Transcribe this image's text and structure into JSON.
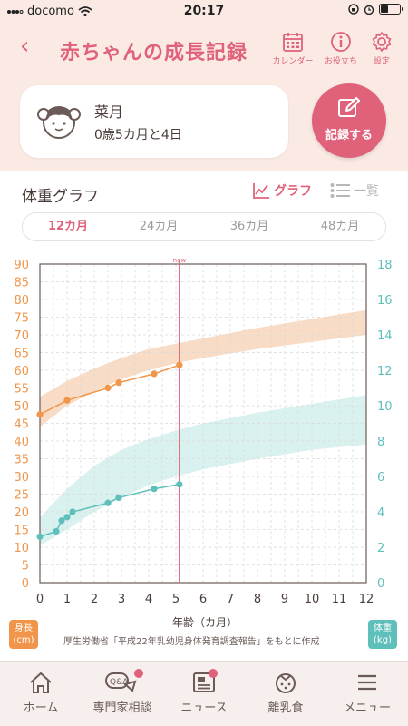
{
  "status": {
    "carrier": "docomo",
    "time": "20:17"
  },
  "header": {
    "back_icon": "chevron-left-icon",
    "title": "赤ちゃんの成長記録",
    "buttons": [
      {
        "icon": "calendar-icon",
        "label": "カレンダー"
      },
      {
        "icon": "info-icon",
        "label": "お役立ち"
      },
      {
        "icon": "gear-icon",
        "label": "設定"
      }
    ]
  },
  "profile": {
    "name": "菜月",
    "age": "0歳5カ月と4日"
  },
  "record_button": {
    "label": "記録する"
  },
  "graph_section": {
    "title": "体重グラフ",
    "view_graph": "グラフ",
    "view_list": "一覧",
    "tabs": [
      "12カ月",
      "24カ月",
      "36カ月",
      "48カ月"
    ],
    "active_tab": 0
  },
  "chart_data": {
    "type": "line",
    "xlabel": "年齢（カ月）",
    "xlim": [
      0,
      12
    ],
    "x_ticks": [
      0,
      1,
      2,
      3,
      4,
      5,
      6,
      7,
      8,
      9,
      10,
      11,
      12
    ],
    "left_axis": {
      "ylim": [
        0,
        90
      ],
      "ticks": [
        0,
        5,
        10,
        15,
        20,
        25,
        30,
        35,
        40,
        45,
        50,
        55,
        60,
        65,
        70,
        75,
        80,
        85,
        90
      ]
    },
    "right_axis": {
      "ylim": [
        0,
        18
      ],
      "ticks": [
        0,
        2,
        4,
        6,
        8,
        10,
        12,
        14,
        16,
        18
      ]
    },
    "now_marker": {
      "label": "now",
      "x": 5.13
    },
    "series": [
      {
        "axis": "left",
        "color": "#f0954a",
        "points": [
          [
            0,
            47.5
          ],
          [
            1,
            51.5
          ],
          [
            2.5,
            55
          ],
          [
            2.9,
            56.5
          ],
          [
            4.2,
            59
          ],
          [
            5.13,
            61.5
          ]
        ]
      },
      {
        "axis": "right",
        "color": "#5fbfbb",
        "points": [
          [
            0,
            2.6
          ],
          [
            0.6,
            2.9
          ],
          [
            0.8,
            3.5
          ],
          [
            1,
            3.7
          ],
          [
            1.2,
            4.0
          ],
          [
            2.5,
            4.5
          ],
          [
            2.9,
            4.8
          ],
          [
            4.2,
            5.3
          ],
          [
            5.13,
            5.55
          ]
        ]
      }
    ],
    "bands": [
      {
        "axis": "left",
        "color": "#f7d0b2",
        "lower": [
          [
            0,
            44
          ],
          [
            1,
            50
          ],
          [
            2,
            54
          ],
          [
            3,
            57.5
          ],
          [
            4,
            60
          ],
          [
            5,
            62
          ],
          [
            6,
            63.5
          ],
          [
            8,
            66
          ],
          [
            10,
            68
          ],
          [
            12,
            70
          ]
        ],
        "upper": [
          [
            0,
            52.5
          ],
          [
            1,
            57
          ],
          [
            2,
            60.5
          ],
          [
            3,
            63.5
          ],
          [
            4,
            66
          ],
          [
            5,
            67.5
          ],
          [
            6,
            69
          ],
          [
            8,
            72
          ],
          [
            10,
            74.5
          ],
          [
            12,
            77
          ]
        ]
      },
      {
        "axis": "right",
        "color": "#cdeee9",
        "lower": [
          [
            0,
            2.1
          ],
          [
            1,
            3.0
          ],
          [
            2,
            4.0
          ],
          [
            3,
            4.8
          ],
          [
            4,
            5.5
          ],
          [
            5,
            6.0
          ],
          [
            6,
            6.4
          ],
          [
            8,
            7.0
          ],
          [
            10,
            7.5
          ],
          [
            12,
            7.8
          ]
        ],
        "upper": [
          [
            0,
            3.7
          ],
          [
            1,
            5.3
          ],
          [
            2,
            6.6
          ],
          [
            3,
            7.5
          ],
          [
            4,
            8.1
          ],
          [
            5,
            8.6
          ],
          [
            6,
            9.0
          ],
          [
            8,
            9.6
          ],
          [
            10,
            10.1
          ],
          [
            12,
            10.6
          ]
        ]
      }
    ]
  },
  "axis_tags": {
    "left_title": "身長",
    "left_unit": "(cm)",
    "right_title": "体重",
    "right_unit": "(kg)"
  },
  "source_note": "厚生労働省「平成22年乳幼児身体発育調査報告」をもとに作成",
  "bottom_nav": [
    {
      "icon": "home-icon",
      "label": "ホーム",
      "badge": false
    },
    {
      "icon": "qa-icon",
      "label": "専門家相談",
      "badge": true
    },
    {
      "icon": "news-icon",
      "label": "ニュース",
      "badge": true
    },
    {
      "icon": "baby-food-icon",
      "label": "離乳食",
      "badge": false
    },
    {
      "icon": "menu-icon",
      "label": "メニュー",
      "badge": false
    }
  ]
}
